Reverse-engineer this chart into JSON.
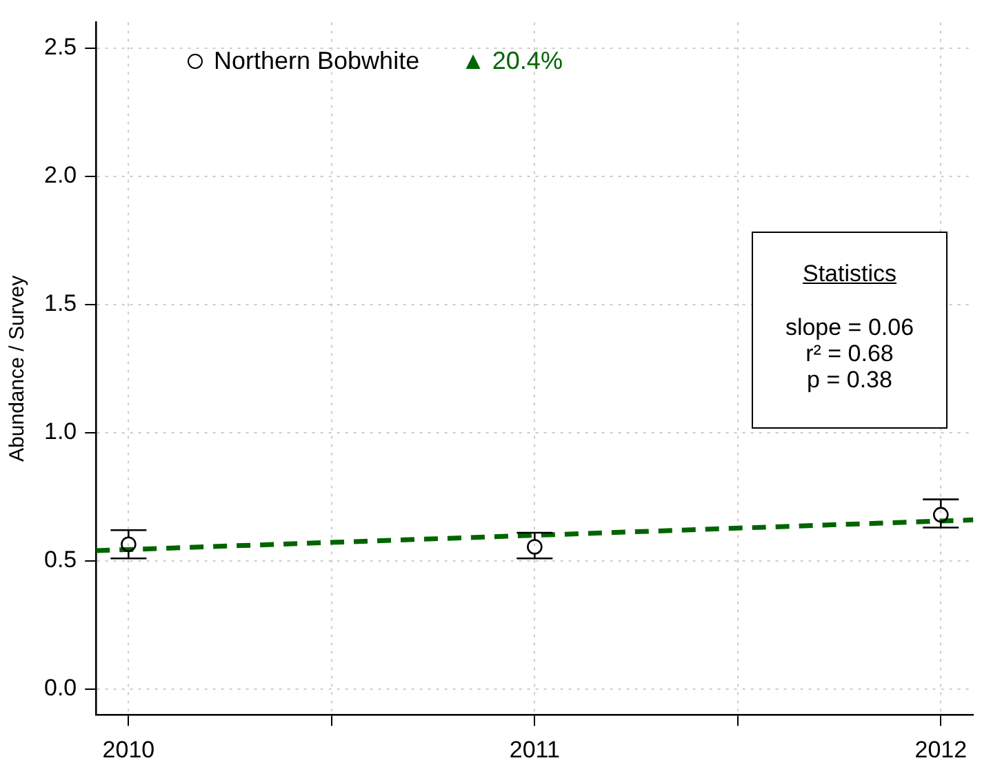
{
  "chart_data": {
    "type": "scatter",
    "ylabel": "Abundance / Survey",
    "xlim": [
      2009.92,
      2012.08
    ],
    "xticks": [
      2010,
      {
        "value": 2010.5,
        "label": null
      },
      2011,
      {
        "value": 2011.5,
        "label": null
      },
      2012
    ],
    "ylim": [
      -0.1,
      2.6
    ],
    "yticks": [
      {
        "value": 0,
        "label": "0.0"
      },
      0.5,
      {
        "value": 1,
        "label": "1.0"
      },
      1.5,
      {
        "value": 2,
        "label": "2.0"
      },
      2.5
    ],
    "grid": true,
    "legend": "top left",
    "series": [
      {
        "name": "Northern Bobwhite",
        "color": "#000000",
        "marker": "circle",
        "x": [
          2010,
          2011,
          2012
        ],
        "values": [
          0.565,
          0.555,
          0.68
        ],
        "errors": [
          [
            0.51,
            0.62
          ],
          [
            0.51,
            0.61
          ],
          [
            0.63,
            0.74
          ]
        ]
      },
      {
        "type": "line",
        "color": "#006400",
        "line_style": "dashed",
        "marker": "none",
        "x": [
          2009.92,
          2012.08
        ],
        "values": [
          0.54,
          0.66
        ]
      }
    ],
    "annotations": [
      "▲ 20.4%",
      "Statistics",
      "slope = 0.06",
      "r² = 0.68",
      "p = 0.38"
    ]
  }
}
